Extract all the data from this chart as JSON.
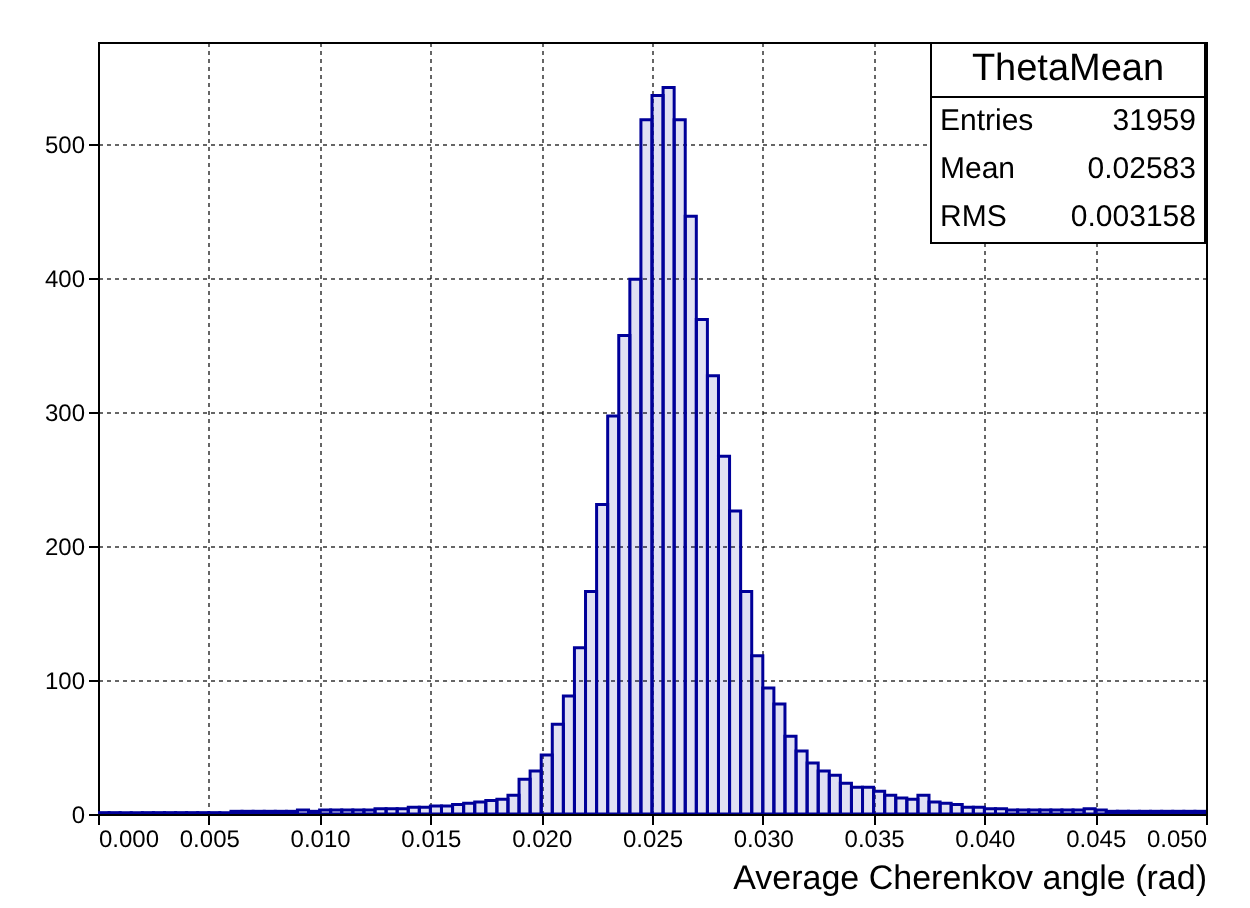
{
  "chart_data": {
    "type": "histogram",
    "xlabel": "Average Cherenkov angle (rad)",
    "bins": [
      0,
      0.0005,
      0.001,
      0.0015,
      0.002,
      0.0025,
      0.003,
      0.0035,
      0.004,
      0.0045,
      0.005,
      0.0055,
      0.006,
      0.0065,
      0.007,
      0.0075,
      0.008,
      0.0085,
      0.009,
      0.0095,
      0.01,
      0.0105,
      0.011,
      0.0115,
      0.012,
      0.0125,
      0.013,
      0.0135,
      0.014,
      0.0145,
      0.015,
      0.0155,
      0.016,
      0.0165,
      0.017,
      0.0175,
      0.018,
      0.0185,
      0.019,
      0.0195,
      0.02,
      0.0205,
      0.021,
      0.0215,
      0.022,
      0.0225,
      0.023,
      0.0235,
      0.024,
      0.0245,
      0.025,
      0.0255,
      0.026,
      0.0265,
      0.027,
      0.0275,
      0.028,
      0.0285,
      0.029,
      0.0295,
      0.03,
      0.0305,
      0.031,
      0.0315,
      0.032,
      0.0325,
      0.033,
      0.0335,
      0.034,
      0.0345,
      0.035,
      0.0355,
      0.036,
      0.0365,
      0.037,
      0.0375,
      0.038,
      0.0385,
      0.039,
      0.0395,
      0.04,
      0.0405,
      0.041,
      0.0415,
      0.042,
      0.0425,
      0.043,
      0.0435,
      0.044,
      0.0445,
      0.045,
      0.0455,
      0.046,
      0.0465,
      0.047,
      0.0475,
      0.048,
      0.0485,
      0.049,
      0.0495,
      0.05
    ],
    "values": [
      1,
      1,
      1,
      1,
      1,
      1,
      1,
      1,
      1,
      1,
      1,
      1,
      2,
      2,
      2,
      2,
      2,
      2,
      3,
      2,
      3,
      3,
      3,
      3,
      3,
      4,
      4,
      4,
      5,
      5,
      6,
      6,
      7,
      8,
      9,
      10,
      11,
      14,
      26,
      32,
      44,
      67,
      88,
      124,
      166,
      231,
      297,
      357,
      399,
      518,
      536,
      542,
      518,
      446,
      369,
      327,
      267,
      226,
      166,
      118,
      94,
      82,
      58,
      47,
      38,
      32,
      29,
      23,
      20,
      20,
      17,
      14,
      12,
      11,
      14,
      9,
      8,
      7,
      5,
      5,
      4,
      4,
      3,
      3,
      3,
      3,
      3,
      3,
      3,
      4,
      3,
      2,
      2,
      2,
      2,
      2,
      2,
      2,
      2,
      2
    ],
    "color": "#000099",
    "xlim": [
      0,
      0.05
    ],
    "xticks": [
      {
        "value": 0,
        "label": "0.000"
      },
      {
        "value": 0.005,
        "label": "0.005"
      },
      {
        "value": 0.01,
        "label": "0.010"
      },
      {
        "value": 0.015,
        "label": "0.015"
      },
      {
        "value": 0.02,
        "label": "0.020"
      },
      {
        "value": 0.025,
        "label": "0.025"
      },
      {
        "value": 0.03,
        "label": "0.030"
      },
      {
        "value": 0.035,
        "label": "0.035"
      },
      {
        "value": 0.04,
        "label": "0.040"
      },
      {
        "value": 0.045,
        "label": "0.045"
      },
      {
        "value": 0.05,
        "label": "0.050"
      }
    ],
    "ylim": [
      0,
      576
    ],
    "yticks": [
      0,
      100,
      200,
      300,
      400,
      500
    ],
    "grid": true,
    "annotations": [
      "ThetaMean",
      "Entries",
      "31959",
      "Mean",
      "0.02583",
      "RMS",
      "0.003158"
    ]
  }
}
